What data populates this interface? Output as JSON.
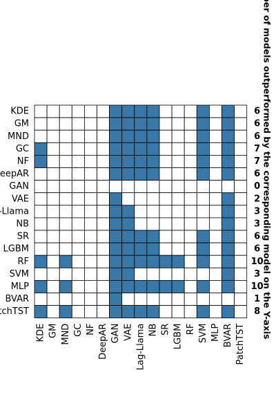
{
  "chart_data": {
    "type": "heatmap",
    "title": "",
    "xlabel": "",
    "ylabel": "Number of models outperformed by the corresponding model on the Y-axis",
    "rows": [
      "KDE",
      "GM",
      "MND",
      "GC",
      "NF",
      "DeepAR",
      "GAN",
      "VAE",
      "Lag-Llama",
      "NB",
      "SR",
      "LGBM",
      "RF",
      "SVM",
      "MLP",
      "BVAR",
      "PatchTST"
    ],
    "columns": [
      "KDE",
      "GM",
      "MND",
      "GC",
      "NF",
      "DeepAR",
      "GAN",
      "VAE",
      "Lag-Llama",
      "NB",
      "SR",
      "LGBM",
      "RF",
      "SVM",
      "MLP",
      "BVAR",
      "PatchTST"
    ],
    "matrix": [
      [
        0,
        0,
        0,
        0,
        0,
        0,
        1,
        1,
        1,
        1,
        0,
        0,
        0,
        1,
        0,
        1,
        0
      ],
      [
        0,
        0,
        0,
        0,
        0,
        0,
        1,
        1,
        1,
        1,
        0,
        0,
        0,
        1,
        0,
        1,
        0
      ],
      [
        0,
        0,
        0,
        0,
        0,
        0,
        1,
        1,
        1,
        1,
        0,
        0,
        0,
        1,
        0,
        1,
        0
      ],
      [
        1,
        0,
        0,
        0,
        0,
        0,
        1,
        1,
        1,
        1,
        0,
        0,
        0,
        1,
        0,
        1,
        0
      ],
      [
        1,
        0,
        0,
        0,
        0,
        0,
        1,
        1,
        1,
        1,
        0,
        0,
        0,
        1,
        0,
        1,
        0
      ],
      [
        0,
        0,
        0,
        0,
        0,
        0,
        1,
        1,
        1,
        1,
        0,
        0,
        0,
        1,
        0,
        1,
        0
      ],
      [
        0,
        0,
        0,
        0,
        0,
        0,
        0,
        0,
        0,
        0,
        0,
        0,
        0,
        0,
        0,
        0,
        0
      ],
      [
        0,
        0,
        0,
        0,
        0,
        0,
        1,
        0,
        0,
        0,
        0,
        0,
        0,
        0,
        0,
        1,
        0
      ],
      [
        0,
        0,
        0,
        0,
        0,
        0,
        1,
        1,
        0,
        0,
        0,
        0,
        0,
        0,
        0,
        1,
        0
      ],
      [
        0,
        0,
        0,
        0,
        0,
        0,
        1,
        1,
        0,
        0,
        0,
        0,
        0,
        0,
        0,
        1,
        0
      ],
      [
        0,
        0,
        0,
        0,
        0,
        0,
        1,
        1,
        1,
        1,
        0,
        0,
        0,
        1,
        0,
        1,
        0
      ],
      [
        0,
        0,
        0,
        0,
        0,
        0,
        1,
        1,
        1,
        1,
        0,
        0,
        0,
        1,
        0,
        1,
        0
      ],
      [
        1,
        0,
        1,
        0,
        0,
        0,
        1,
        1,
        1,
        1,
        1,
        1,
        0,
        1,
        0,
        1,
        0
      ],
      [
        0,
        0,
        0,
        0,
        0,
        0,
        1,
        1,
        0,
        0,
        0,
        0,
        0,
        0,
        0,
        1,
        0
      ],
      [
        1,
        0,
        1,
        0,
        0,
        0,
        1,
        1,
        1,
        1,
        1,
        1,
        0,
        1,
        0,
        1,
        0
      ],
      [
        0,
        0,
        0,
        0,
        0,
        0,
        1,
        0,
        0,
        0,
        0,
        0,
        0,
        0,
        0,
        0,
        0
      ],
      [
        1,
        0,
        1,
        0,
        0,
        0,
        1,
        1,
        1,
        1,
        0,
        0,
        0,
        1,
        0,
        1,
        0
      ]
    ],
    "counts": [
      "6",
      "6",
      "6",
      "7",
      "7",
      "6",
      "0",
      "2",
      "3",
      "3",
      "6",
      "6",
      "10",
      "3",
      "10",
      "1",
      "8"
    ],
    "colors": {
      "filled": "#3a78a8",
      "empty": "#ffffff",
      "grid": "#000000"
    },
    "grid": true,
    "legend": "none"
  }
}
